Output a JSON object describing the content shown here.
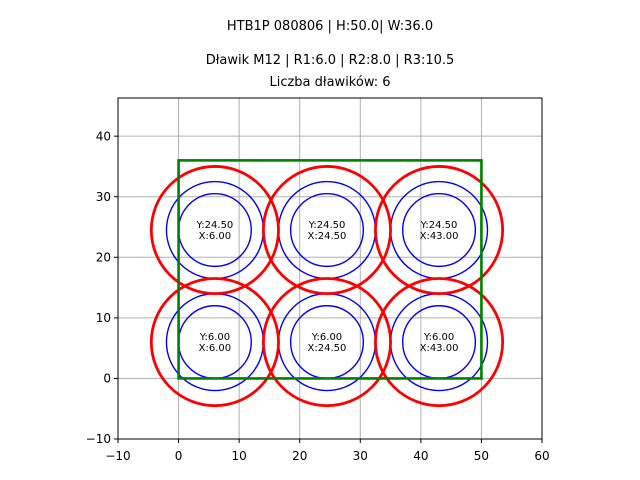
{
  "figure": {
    "title": "HTB1P 080806 | H:50.0| W:36.0",
    "subtitle": "Dławik M12 | R1:6.0 | R2:8.0 | R3:10.5",
    "subtitle2": "Liczba dławików: 6"
  },
  "chart_data": {
    "type": "scatter",
    "title": "HTB1P 080806 | H:50.0| W:36.0",
    "subtitle": "Dławik M12 | R1:6.0 | R2:8.0 | R3:10.5",
    "gland_count_label": "Liczba dławików: 6",
    "xlim": [
      -10,
      60
    ],
    "ylim": [
      -10,
      46.3
    ],
    "xticks": [
      -10,
      0,
      10,
      20,
      30,
      40,
      50,
      60
    ],
    "yticks": [
      -10,
      0,
      10,
      20,
      30,
      40
    ],
    "grid": true,
    "colors": {
      "plate": "#008000",
      "outer_circle": "#ff0000",
      "inner_circles": "#0000ff",
      "grid": "#b0b0b0",
      "spine": "#000000",
      "text": "#000000"
    },
    "plate": {
      "x": 0,
      "y": 0,
      "width": 50,
      "height": 36
    },
    "radii": {
      "R1": 6.0,
      "R2": 8.0,
      "R3": 10.5
    },
    "glands": [
      {
        "x": 6.0,
        "y": 24.5,
        "label": [
          "Y:24.50",
          "X:6.00"
        ]
      },
      {
        "x": 24.5,
        "y": 24.5,
        "label": [
          "Y:24.50",
          "X:24.50"
        ]
      },
      {
        "x": 43.0,
        "y": 24.5,
        "label": [
          "Y:24.50",
          "X:43.00"
        ]
      },
      {
        "x": 6.0,
        "y": 6.0,
        "label": [
          "Y:6.00",
          "X:6.00"
        ]
      },
      {
        "x": 24.5,
        "y": 6.0,
        "label": [
          "Y:6.00",
          "X:24.50"
        ]
      },
      {
        "x": 43.0,
        "y": 6.0,
        "label": [
          "Y:6.00",
          "X:43.00"
        ]
      }
    ]
  }
}
